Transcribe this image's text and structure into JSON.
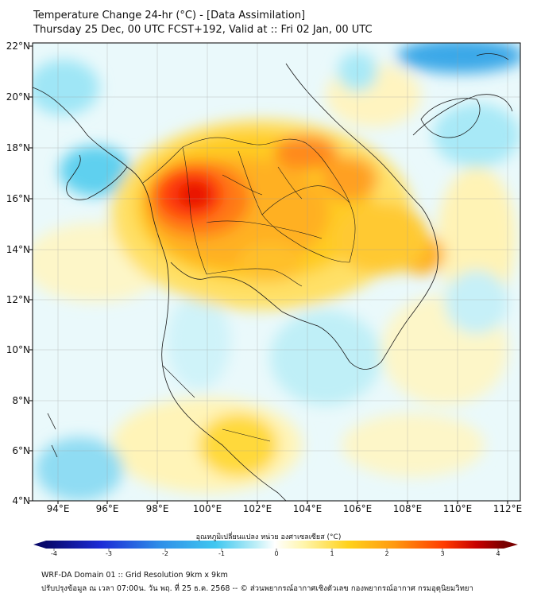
{
  "title": {
    "line1": "Temperature Change 24-hr (°C) - [Data Assimilation]",
    "line2": "Thursday 25 Dec, 00 UTC FCST+192, Valid at :: Fri 02 Jan, 00 UTC"
  },
  "map": {
    "lat_labels": [
      "22°N",
      "20°N",
      "18°N",
      "16°N",
      "14°N",
      "12°N",
      "10°N",
      "8°N",
      "6°N",
      "4°N"
    ],
    "lon_labels": [
      "94°E",
      "96°E",
      "98°E",
      "100°E",
      "102°E",
      "104°E",
      "106°E",
      "108°E",
      "110°E",
      "112°E"
    ],
    "lat_range": [
      4,
      22
    ],
    "lon_range": [
      93,
      112.5
    ]
  },
  "colorbar": {
    "title": "อุณหภูมิเปลี่ยนแปลง หน่วย องศาเซลเซียส (°C)",
    "ticks": [
      "-4",
      "-3",
      "-2",
      "-1",
      "0",
      "1",
      "2",
      "3",
      "4"
    ],
    "range": [
      -4,
      4
    ],
    "colors": [
      "#08086b",
      "#1c2bd6",
      "#2f8fe8",
      "#3fc7f0",
      "#bfeff7",
      "#ffffff",
      "#fff6b0",
      "#ffd21c",
      "#ff9a10",
      "#ff3b00",
      "#c80000",
      "#7a0000"
    ]
  },
  "footer": {
    "line1": "WRF-DA Domain 01 :: Grid Resolution 9km x 9km",
    "line2": "ปรับปรุงข้อมูล ณ เวลา 07:00น. วัน พฤ. ที่ 25 ธ.ค. 2568 -- © ส่วนพยากรณ์อากาศเชิงตัวเลข กองพยากรณ์อากาศ กรมอุตุนิยมวิทยา"
  }
}
